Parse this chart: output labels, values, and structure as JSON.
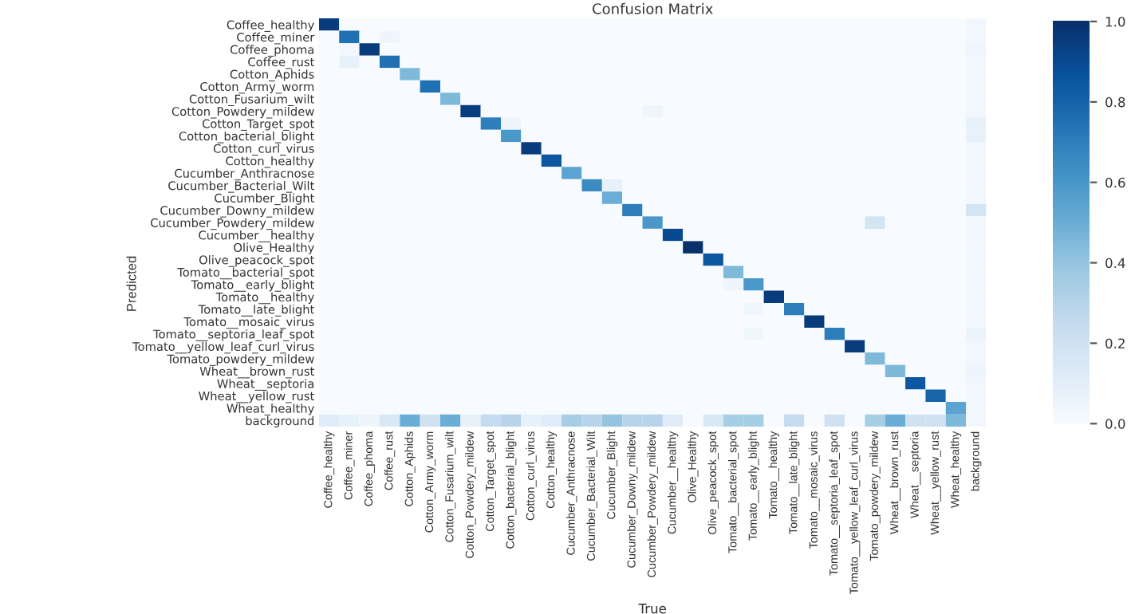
{
  "chart_data": {
    "type": "heatmap",
    "title": "Confusion Matrix",
    "xlabel": "True",
    "ylabel": "Predicted",
    "categories": [
      "Coffee_healthy",
      "Coffee_miner",
      "Coffee_phoma",
      "Coffee_rust",
      "Cotton_Aphids",
      "Cotton_Army_worm",
      "Cotton_Fusarium_wilt",
      "Cotton_Powdery_mildew",
      "Cotton_Target_spot",
      "Cotton_bacterial_blight",
      "Cotton_curl_virus",
      "Cotton_healthy",
      "Cucumber_Anthracnose",
      "Cucumber_Bacterial_Wilt",
      "Cucumber_Blight",
      "Cucumber_Downy_mildew",
      "Cucumber_Powdery_mildew",
      "Cucumber__healthy",
      "Olive_Healthy",
      "Olive_peacock_spot",
      "Tomato__bacterial_spot",
      "Tomato__early_blight",
      "Tomato__healthy",
      "Tomato__late_blight",
      "Tomato__mosaic_virus",
      "Tomato__septoria_leaf_spot",
      "Tomato__yellow_leaf_curl_virus",
      "Tomato_powdery_mildew",
      "Wheat__brown_rust",
      "Wheat__septoria",
      "Wheat__yellow_rust",
      "Wheat_healthy",
      "background"
    ],
    "y_categories": [
      "Coffee_healthy",
      "Coffee_miner",
      "Coffee_phoma",
      "Coffee_rust",
      "Cotton_Aphids",
      "Cotton_Army_worm",
      "Cotton_Fusarium_wilt",
      "Cotton_Powdery_mildew",
      "Cotton_Target_spot",
      "Cotton_bacterial_blight",
      "Cotton_curl_virus",
      "Cotton_healthy",
      "Cucumber_Anthracnose",
      "Cucumber_Bacterial_Wilt",
      "Cucumber_Blight",
      "Cucumber_Downy_mildew",
      "Cucumber_Powdery_mildew",
      "Cucumber__healthy",
      "Olive_Healthy",
      "Olive_peacock_spot",
      "Tomato__bacterial_spot",
      "Tomato__early_blight",
      "Tomato__healthy",
      "Tomato__late_blight",
      "Tomato__mosaic_virus",
      "Tomato__septoria_leaf_spot",
      "Tomato__yellow_leaf_curl_virus",
      "Tomato_powdery_mildew",
      "Wheat__brown_rust",
      "Wheat__septoria",
      "Wheat__yellow_rust",
      "Wheat_healthy",
      "background"
    ],
    "cells": [
      [
        0.95,
        0,
        0,
        0,
        0,
        0,
        0,
        0,
        0,
        0,
        0,
        0,
        0,
        0,
        0,
        0,
        0,
        0,
        0,
        0,
        0,
        0,
        0,
        0,
        0,
        0,
        0,
        0,
        0,
        0,
        0,
        0,
        0.03
      ],
      [
        0,
        0.75,
        0,
        0.05,
        0,
        0,
        0,
        0,
        0,
        0,
        0,
        0,
        0,
        0,
        0,
        0,
        0,
        0,
        0,
        0,
        0,
        0,
        0,
        0,
        0,
        0,
        0,
        0,
        0,
        0,
        0,
        0,
        0.03
      ],
      [
        0,
        0.03,
        0.95,
        0,
        0,
        0,
        0,
        0,
        0,
        0,
        0,
        0,
        0,
        0,
        0,
        0,
        0,
        0,
        0,
        0,
        0,
        0,
        0,
        0,
        0,
        0,
        0,
        0,
        0,
        0,
        0,
        0,
        0.05
      ],
      [
        0,
        0.08,
        0,
        0.75,
        0,
        0,
        0,
        0,
        0,
        0,
        0,
        0,
        0,
        0,
        0,
        0,
        0,
        0,
        0,
        0,
        0,
        0,
        0,
        0,
        0,
        0,
        0,
        0,
        0,
        0,
        0,
        0,
        0.03
      ],
      [
        0,
        0,
        0,
        0,
        0.45,
        0,
        0,
        0,
        0,
        0,
        0,
        0,
        0,
        0,
        0,
        0,
        0,
        0,
        0,
        0,
        0,
        0,
        0,
        0,
        0,
        0,
        0,
        0,
        0,
        0,
        0,
        0,
        0.03
      ],
      [
        0,
        0,
        0,
        0,
        0,
        0.75,
        0,
        0,
        0,
        0,
        0,
        0,
        0,
        0,
        0,
        0,
        0,
        0,
        0,
        0,
        0,
        0,
        0,
        0,
        0,
        0,
        0,
        0,
        0,
        0,
        0,
        0,
        0.03
      ],
      [
        0,
        0,
        0,
        0,
        0,
        0,
        0.45,
        0,
        0,
        0,
        0,
        0,
        0,
        0,
        0,
        0,
        0,
        0,
        0,
        0,
        0,
        0,
        0,
        0,
        0,
        0,
        0,
        0,
        0,
        0,
        0,
        0,
        0.03
      ],
      [
        0,
        0,
        0,
        0,
        0,
        0,
        0,
        0.95,
        0,
        0,
        0,
        0,
        0,
        0,
        0,
        0,
        0.05,
        0,
        0,
        0,
        0,
        0,
        0,
        0,
        0,
        0,
        0,
        0,
        0,
        0,
        0,
        0,
        0.03
      ],
      [
        0,
        0,
        0,
        0,
        0,
        0,
        0,
        0,
        0.7,
        0.05,
        0,
        0,
        0,
        0,
        0,
        0,
        0,
        0,
        0,
        0,
        0,
        0,
        0,
        0,
        0,
        0,
        0,
        0,
        0,
        0,
        0,
        0,
        0.08
      ],
      [
        0,
        0,
        0,
        0,
        0,
        0,
        0,
        0,
        0,
        0.6,
        0,
        0,
        0,
        0,
        0,
        0,
        0,
        0,
        0,
        0,
        0,
        0,
        0,
        0,
        0,
        0,
        0,
        0,
        0,
        0,
        0,
        0,
        0.08
      ],
      [
        0,
        0,
        0,
        0,
        0,
        0,
        0,
        0,
        0,
        0,
        0.95,
        0,
        0,
        0,
        0,
        0,
        0,
        0,
        0,
        0,
        0,
        0,
        0,
        0,
        0,
        0,
        0,
        0,
        0,
        0,
        0,
        0,
        0.03
      ],
      [
        0,
        0,
        0,
        0,
        0,
        0,
        0,
        0,
        0,
        0,
        0,
        0.85,
        0,
        0,
        0,
        0,
        0,
        0,
        0,
        0,
        0,
        0,
        0,
        0,
        0,
        0,
        0,
        0,
        0,
        0,
        0,
        0,
        0.03
      ],
      [
        0,
        0,
        0,
        0,
        0,
        0,
        0,
        0,
        0,
        0,
        0,
        0,
        0.55,
        0,
        0,
        0,
        0,
        0,
        0,
        0,
        0,
        0,
        0,
        0,
        0,
        0,
        0,
        0,
        0,
        0,
        0,
        0,
        0.03
      ],
      [
        0,
        0,
        0,
        0,
        0,
        0,
        0,
        0,
        0,
        0,
        0,
        0,
        0,
        0.65,
        0.08,
        0,
        0,
        0,
        0,
        0,
        0,
        0,
        0,
        0,
        0,
        0,
        0,
        0,
        0,
        0,
        0,
        0,
        0.03
      ],
      [
        0,
        0,
        0,
        0,
        0,
        0,
        0,
        0,
        0,
        0,
        0,
        0,
        0,
        0,
        0.5,
        0,
        0,
        0,
        0,
        0,
        0,
        0,
        0,
        0,
        0,
        0,
        0,
        0,
        0,
        0,
        0,
        0,
        0.03
      ],
      [
        0,
        0,
        0,
        0,
        0,
        0,
        0,
        0,
        0,
        0,
        0,
        0,
        0,
        0,
        0,
        0.7,
        0,
        0,
        0,
        0,
        0,
        0,
        0,
        0,
        0,
        0,
        0,
        0,
        0,
        0,
        0,
        0,
        0.18
      ],
      [
        0,
        0,
        0,
        0,
        0,
        0,
        0,
        0,
        0,
        0,
        0,
        0,
        0,
        0,
        0,
        0,
        0.6,
        0,
        0,
        0,
        0,
        0,
        0,
        0,
        0,
        0,
        0,
        0.18,
        0,
        0,
        0,
        0,
        0.03
      ],
      [
        0,
        0,
        0,
        0,
        0,
        0,
        0,
        0,
        0,
        0,
        0,
        0,
        0,
        0,
        0,
        0,
        0,
        0.9,
        0,
        0,
        0,
        0,
        0,
        0,
        0,
        0,
        0,
        0,
        0,
        0,
        0,
        0,
        0.03
      ],
      [
        0,
        0,
        0,
        0,
        0,
        0,
        0,
        0,
        0,
        0,
        0,
        0,
        0,
        0,
        0,
        0,
        0,
        0,
        1.0,
        0,
        0,
        0,
        0,
        0,
        0,
        0,
        0,
        0,
        0,
        0,
        0,
        0,
        0.03
      ],
      [
        0,
        0,
        0,
        0,
        0,
        0,
        0,
        0,
        0,
        0,
        0,
        0,
        0,
        0,
        0,
        0,
        0,
        0,
        0,
        0.85,
        0,
        0,
        0,
        0,
        0,
        0,
        0,
        0,
        0,
        0,
        0,
        0,
        0.03
      ],
      [
        0,
        0,
        0,
        0,
        0,
        0,
        0,
        0,
        0,
        0,
        0,
        0,
        0,
        0,
        0,
        0,
        0,
        0,
        0,
        0,
        0.45,
        0,
        0,
        0,
        0,
        0,
        0,
        0,
        0,
        0,
        0,
        0,
        0.03
      ],
      [
        0,
        0,
        0,
        0,
        0,
        0,
        0,
        0,
        0,
        0,
        0,
        0,
        0,
        0,
        0,
        0,
        0,
        0,
        0,
        0,
        0.05,
        0.6,
        0,
        0,
        0,
        0,
        0,
        0,
        0,
        0,
        0,
        0,
        0.03
      ],
      [
        0,
        0,
        0,
        0,
        0,
        0,
        0,
        0,
        0,
        0,
        0,
        0,
        0,
        0,
        0,
        0,
        0,
        0,
        0,
        0,
        0,
        0,
        0.95,
        0,
        0,
        0,
        0,
        0,
        0,
        0,
        0,
        0,
        0.03
      ],
      [
        0,
        0,
        0,
        0,
        0,
        0,
        0,
        0,
        0,
        0,
        0,
        0,
        0,
        0,
        0,
        0,
        0,
        0,
        0,
        0,
        0,
        0.04,
        0,
        0.7,
        0,
        0,
        0,
        0,
        0,
        0,
        0,
        0,
        0.03
      ],
      [
        0,
        0,
        0,
        0,
        0,
        0,
        0,
        0,
        0,
        0,
        0,
        0,
        0,
        0,
        0,
        0,
        0,
        0,
        0,
        0,
        0,
        0,
        0,
        0,
        0.95,
        0,
        0,
        0,
        0,
        0,
        0,
        0,
        0.03
      ],
      [
        0,
        0,
        0,
        0,
        0,
        0,
        0,
        0,
        0,
        0,
        0,
        0,
        0,
        0,
        0,
        0,
        0,
        0,
        0,
        0,
        0,
        0.04,
        0,
        0,
        0,
        0.7,
        0,
        0,
        0,
        0,
        0,
        0,
        0.06
      ],
      [
        0,
        0,
        0,
        0,
        0,
        0,
        0,
        0,
        0,
        0,
        0,
        0,
        0,
        0,
        0,
        0,
        0,
        0,
        0,
        0,
        0,
        0,
        0,
        0,
        0,
        0,
        0.95,
        0,
        0,
        0,
        0,
        0,
        0.03
      ],
      [
        0,
        0,
        0,
        0,
        0,
        0,
        0,
        0,
        0,
        0,
        0,
        0,
        0,
        0,
        0,
        0,
        0,
        0,
        0,
        0,
        0,
        0,
        0,
        0,
        0,
        0,
        0,
        0.45,
        0,
        0,
        0,
        0,
        0.03
      ],
      [
        0,
        0,
        0,
        0,
        0,
        0,
        0,
        0,
        0,
        0,
        0,
        0,
        0,
        0,
        0,
        0,
        0,
        0,
        0,
        0,
        0,
        0,
        0,
        0,
        0,
        0,
        0,
        0,
        0.45,
        0,
        0,
        0,
        0.05
      ],
      [
        0,
        0,
        0,
        0,
        0,
        0,
        0,
        0,
        0,
        0,
        0,
        0,
        0,
        0,
        0,
        0,
        0,
        0,
        0,
        0,
        0,
        0,
        0,
        0,
        0,
        0,
        0,
        0,
        0,
        0.85,
        0,
        0,
        0.03
      ],
      [
        0,
        0,
        0,
        0,
        0,
        0,
        0,
        0,
        0,
        0,
        0,
        0,
        0,
        0,
        0,
        0,
        0,
        0,
        0,
        0,
        0,
        0,
        0,
        0,
        0,
        0,
        0,
        0,
        0,
        0,
        0.8,
        0,
        0.03
      ],
      [
        0,
        0,
        0,
        0,
        0,
        0,
        0,
        0,
        0,
        0,
        0,
        0,
        0,
        0,
        0,
        0,
        0,
        0,
        0,
        0,
        0,
        0,
        0,
        0,
        0,
        0,
        0,
        0,
        0,
        0,
        0,
        0.55,
        0.03
      ],
      [
        0.12,
        0.08,
        0.05,
        0.15,
        0.5,
        0.2,
        0.5,
        0.08,
        0.25,
        0.3,
        0.08,
        0.12,
        0.35,
        0.3,
        0.4,
        0.3,
        0.3,
        0.12,
        0,
        0.15,
        0.35,
        0.35,
        0,
        0.25,
        0,
        0.2,
        0,
        0.35,
        0.5,
        0.2,
        0.2,
        0.45,
        0.03
      ]
    ],
    "clim": [
      0,
      1
    ],
    "cticks": [
      {
        "value": 0,
        "label": "0.0"
      },
      0.2,
      0.4,
      0.6,
      0.8,
      {
        "value": 1,
        "label": "1.0"
      }
    ]
  }
}
